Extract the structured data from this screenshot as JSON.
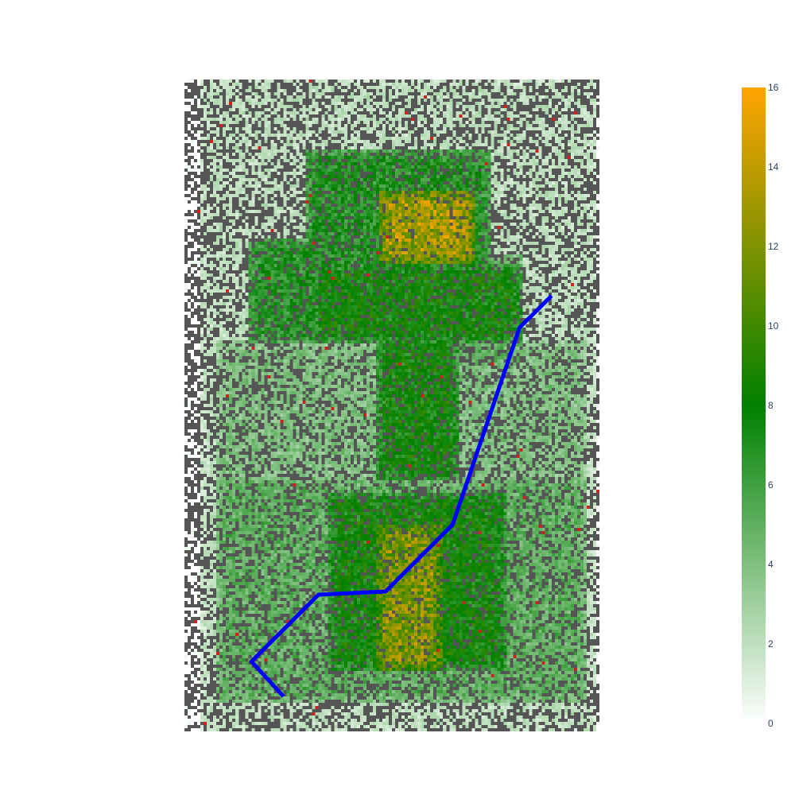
{
  "chart_data": {
    "type": "heatmap",
    "title": "",
    "xlabel": "",
    "ylabel": "",
    "grid": false,
    "legend": "none",
    "colorbar": {
      "min": 0,
      "max": 16,
      "ticks": [
        "0",
        "2",
        "4",
        "6",
        "8",
        "10",
        "12",
        "14",
        "16"
      ],
      "colorscale": [
        [
          0.0,
          "#ffffff"
        ],
        [
          0.5,
          "#008000"
        ],
        [
          1.0,
          "#ffa500"
        ]
      ]
    },
    "noise_color": "#555555",
    "marker_color": "#cc2222",
    "grid_size": [
      130,
      205
    ],
    "regions": [
      {
        "x": [
          38,
          95
        ],
        "y": [
          22,
          62
        ],
        "v": 7
      },
      {
        "x": [
          40,
          105
        ],
        "y": [
          58,
          82
        ],
        "v": 8
      },
      {
        "x": [
          61,
          90
        ],
        "y": [
          35,
          57
        ],
        "v": 13
      },
      {
        "x": [
          72,
          105
        ],
        "y": [
          55,
          90
        ],
        "v": 5
      },
      {
        "x": [
          20,
          60
        ],
        "y": [
          50,
          82
        ],
        "v": 7
      },
      {
        "x": [
          60,
          85
        ],
        "y": [
          80,
          125
        ],
        "v": 8
      },
      {
        "x": [
          10,
          125
        ],
        "y": [
          125,
          195
        ],
        "v": 5
      },
      {
        "x": [
          45,
          100
        ],
        "y": [
          130,
          185
        ],
        "v": 8
      },
      {
        "x": [
          60,
          80
        ],
        "y": [
          140,
          185
        ],
        "v": 12
      },
      {
        "x": [
          10,
          125
        ],
        "y": [
          82,
          125
        ],
        "v": 4
      },
      {
        "x": [
          5,
          128
        ],
        "y": [
          0,
          205
        ],
        "v": 2
      }
    ],
    "line": {
      "name": "",
      "color": "#0000ff",
      "width": 5,
      "x": [
        31,
        21,
        42,
        63,
        84,
        105,
        115
      ],
      "y": [
        194,
        183,
        162,
        161,
        140,
        78,
        68
      ]
    }
  }
}
